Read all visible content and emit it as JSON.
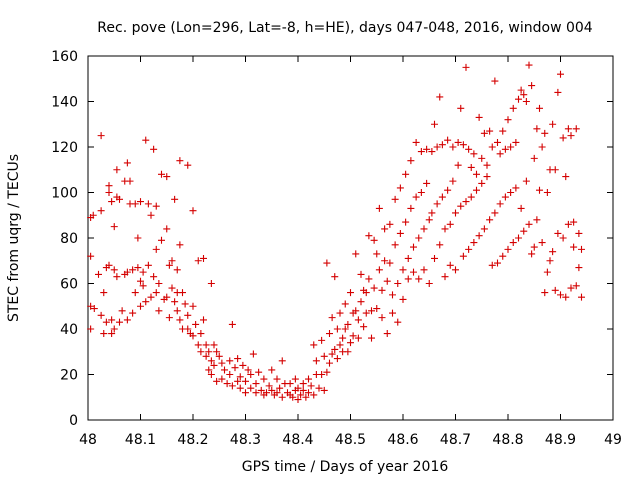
{
  "chart_data": {
    "type": "scatter",
    "title": "Rec. pove (Lon=296, Lat=-8, h=HE), days 047-048, 2016, window 004",
    "xlabel": "GPS time / Days of year 2016",
    "ylabel": "STEC from uqrg / TECUs",
    "xlim": [
      48,
      49
    ],
    "ylim": [
      0,
      160
    ],
    "xticks": [
      "48",
      "48.1",
      "48.2",
      "48.3",
      "48.4",
      "48.5",
      "48.6",
      "48.7",
      "48.8",
      "48.9",
      "49"
    ],
    "yticks": [
      "0",
      "20",
      "40",
      "60",
      "80",
      "100",
      "120",
      "140",
      "160"
    ],
    "grid": false,
    "marker": "+",
    "series_color": "#d40000",
    "points": [
      [
        48.005,
        72
      ],
      [
        48.005,
        89
      ],
      [
        48.005,
        50
      ],
      [
        48.005,
        40
      ],
      [
        48.01,
        90
      ],
      [
        48.012,
        49
      ],
      [
        48.02,
        64
      ],
      [
        48.025,
        92
      ],
      [
        48.025,
        125
      ],
      [
        48.025,
        46
      ],
      [
        48.03,
        38
      ],
      [
        48.03,
        56
      ],
      [
        48.035,
        67
      ],
      [
        48.035,
        43
      ],
      [
        48.04,
        68
      ],
      [
        48.04,
        100
      ],
      [
        48.04,
        103
      ],
      [
        48.045,
        38
      ],
      [
        48.045,
        44
      ],
      [
        48.045,
        96
      ],
      [
        48.05,
        66
      ],
      [
        48.05,
        85
      ],
      [
        48.05,
        40
      ],
      [
        48.055,
        110
      ],
      [
        48.055,
        63
      ],
      [
        48.055,
        98
      ],
      [
        48.06,
        43
      ],
      [
        48.06,
        97
      ],
      [
        48.065,
        48
      ],
      [
        48.07,
        105
      ],
      [
        48.07,
        64
      ],
      [
        48.075,
        65
      ],
      [
        48.075,
        113
      ],
      [
        48.075,
        44
      ],
      [
        48.08,
        105
      ],
      [
        48.08,
        95
      ],
      [
        48.085,
        66
      ],
      [
        48.085,
        47
      ],
      [
        48.09,
        56
      ],
      [
        48.09,
        95
      ],
      [
        48.095,
        80
      ],
      [
        48.095,
        67
      ],
      [
        48.1,
        50
      ],
      [
        48.1,
        61
      ],
      [
        48.1,
        96
      ],
      [
        48.105,
        65
      ],
      [
        48.105,
        59
      ],
      [
        48.11,
        52
      ],
      [
        48.11,
        123
      ],
      [
        48.115,
        95
      ],
      [
        48.115,
        68
      ],
      [
        48.12,
        90
      ],
      [
        48.12,
        54
      ],
      [
        48.125,
        119
      ],
      [
        48.125,
        63
      ],
      [
        48.13,
        75
      ],
      [
        48.13,
        56
      ],
      [
        48.13,
        94
      ],
      [
        48.135,
        48
      ],
      [
        48.135,
        60
      ],
      [
        48.14,
        108
      ],
      [
        48.14,
        79
      ],
      [
        48.145,
        53
      ],
      [
        48.15,
        107
      ],
      [
        48.15,
        54
      ],
      [
        48.15,
        84
      ],
      [
        48.155,
        68
      ],
      [
        48.155,
        45
      ],
      [
        48.16,
        70
      ],
      [
        48.16,
        58
      ],
      [
        48.165,
        52
      ],
      [
        48.165,
        97
      ],
      [
        48.17,
        56
      ],
      [
        48.17,
        48
      ],
      [
        48.17,
        66
      ],
      [
        48.175,
        114
      ],
      [
        48.175,
        77
      ],
      [
        48.175,
        44
      ],
      [
        48.18,
        56
      ],
      [
        48.18,
        40
      ],
      [
        48.185,
        51
      ],
      [
        48.19,
        112
      ],
      [
        48.19,
        40
      ],
      [
        48.19,
        46
      ],
      [
        48.195,
        38
      ],
      [
        48.2,
        92
      ],
      [
        48.2,
        50
      ],
      [
        48.2,
        37
      ],
      [
        48.205,
        42
      ],
      [
        48.21,
        33
      ],
      [
        48.21,
        70
      ],
      [
        48.215,
        30
      ],
      [
        48.215,
        38
      ],
      [
        48.22,
        71
      ],
      [
        48.22,
        44
      ],
      [
        48.225,
        28
      ],
      [
        48.225,
        33
      ],
      [
        48.23,
        22
      ],
      [
        48.23,
        30
      ],
      [
        48.235,
        20
      ],
      [
        48.235,
        60
      ],
      [
        48.235,
        26
      ],
      [
        48.24,
        33
      ],
      [
        48.24,
        24
      ],
      [
        48.245,
        17
      ],
      [
        48.245,
        30
      ],
      [
        48.25,
        28
      ],
      [
        48.255,
        18
      ],
      [
        48.255,
        25
      ],
      [
        48.26,
        22
      ],
      [
        48.265,
        16
      ],
      [
        48.27,
        20
      ],
      [
        48.27,
        26
      ],
      [
        48.275,
        42
      ],
      [
        48.275,
        15
      ],
      [
        48.28,
        23
      ],
      [
        48.285,
        17
      ],
      [
        48.285,
        27
      ],
      [
        48.29,
        14
      ],
      [
        48.29,
        19
      ],
      [
        48.295,
        24
      ],
      [
        48.3,
        17
      ],
      [
        48.3,
        12
      ],
      [
        48.305,
        22
      ],
      [
        48.31,
        14
      ],
      [
        48.31,
        20
      ],
      [
        48.315,
        29
      ],
      [
        48.32,
        12
      ],
      [
        48.32,
        16
      ],
      [
        48.325,
        21
      ],
      [
        48.33,
        13
      ],
      [
        48.335,
        11
      ],
      [
        48.335,
        18
      ],
      [
        48.34,
        12
      ],
      [
        48.345,
        15
      ],
      [
        48.35,
        22
      ],
      [
        48.35,
        13
      ],
      [
        48.355,
        11
      ],
      [
        48.36,
        18
      ],
      [
        48.36,
        12
      ],
      [
        48.365,
        14
      ],
      [
        48.37,
        26
      ],
      [
        48.37,
        10
      ],
      [
        48.375,
        16
      ],
      [
        48.38,
        12
      ],
      [
        48.385,
        11
      ],
      [
        48.385,
        16
      ],
      [
        48.39,
        10
      ],
      [
        48.395,
        13
      ],
      [
        48.395,
        18
      ],
      [
        48.4,
        9
      ],
      [
        48.4,
        14
      ],
      [
        48.405,
        11
      ],
      [
        48.41,
        16
      ],
      [
        48.41,
        13
      ],
      [
        48.415,
        10
      ],
      [
        48.42,
        12
      ],
      [
        48.42,
        18
      ],
      [
        48.425,
        15
      ],
      [
        48.43,
        33
      ],
      [
        48.43,
        11
      ],
      [
        48.435,
        20
      ],
      [
        48.435,
        26
      ],
      [
        48.44,
        14
      ],
      [
        48.445,
        20
      ],
      [
        48.445,
        35
      ],
      [
        48.45,
        13
      ],
      [
        48.45,
        28
      ],
      [
        48.455,
        69
      ],
      [
        48.455,
        21
      ],
      [
        48.46,
        38
      ],
      [
        48.46,
        25
      ],
      [
        48.465,
        45
      ],
      [
        48.465,
        29
      ],
      [
        48.47,
        31
      ],
      [
        48.47,
        63
      ],
      [
        48.475,
        40
      ],
      [
        48.475,
        27
      ],
      [
        48.48,
        47
      ],
      [
        48.48,
        33
      ],
      [
        48.485,
        36
      ],
      [
        48.485,
        30
      ],
      [
        48.49,
        51
      ],
      [
        48.49,
        40
      ],
      [
        48.495,
        42
      ],
      [
        48.495,
        30
      ],
      [
        48.5,
        56
      ],
      [
        48.5,
        34
      ],
      [
        48.505,
        47
      ],
      [
        48.505,
        37
      ],
      [
        48.51,
        73
      ],
      [
        48.51,
        48
      ],
      [
        48.515,
        44
      ],
      [
        48.515,
        36
      ],
      [
        48.52,
        64
      ],
      [
        48.52,
        52
      ],
      [
        48.525,
        41
      ],
      [
        48.525,
        57
      ],
      [
        48.53,
        56
      ],
      [
        48.53,
        47
      ],
      [
        48.535,
        81
      ],
      [
        48.535,
        62
      ],
      [
        48.54,
        48
      ],
      [
        48.54,
        36
      ],
      [
        48.545,
        79
      ],
      [
        48.545,
        58
      ],
      [
        48.55,
        73
      ],
      [
        48.55,
        49
      ],
      [
        48.555,
        93
      ],
      [
        48.555,
        66
      ],
      [
        48.56,
        45
      ],
      [
        48.56,
        57
      ],
      [
        48.565,
        84
      ],
      [
        48.565,
        70
      ],
      [
        48.57,
        61
      ],
      [
        48.57,
        38
      ],
      [
        48.575,
        86
      ],
      [
        48.575,
        69
      ],
      [
        48.58,
        55
      ],
      [
        48.58,
        47
      ],
      [
        48.585,
        97
      ],
      [
        48.585,
        77
      ],
      [
        48.59,
        60
      ],
      [
        48.59,
        43
      ],
      [
        48.595,
        102
      ],
      [
        48.595,
        82
      ],
      [
        48.6,
        66
      ],
      [
        48.6,
        53
      ],
      [
        48.605,
        108
      ],
      [
        48.605,
        87
      ],
      [
        48.61,
        71
      ],
      [
        48.61,
        62
      ],
      [
        48.615,
        114
      ],
      [
        48.615,
        93
      ],
      [
        48.62,
        76
      ],
      [
        48.62,
        65
      ],
      [
        48.625,
        122
      ],
      [
        48.625,
        98
      ],
      [
        48.63,
        80
      ],
      [
        48.63,
        62
      ],
      [
        48.635,
        118
      ],
      [
        48.635,
        100
      ],
      [
        48.64,
        84
      ],
      [
        48.64,
        66
      ],
      [
        48.645,
        119
      ],
      [
        48.645,
        104
      ],
      [
        48.65,
        88
      ],
      [
        48.65,
        60
      ],
      [
        48.655,
        118
      ],
      [
        48.655,
        91
      ],
      [
        48.66,
        130
      ],
      [
        48.66,
        71
      ],
      [
        48.665,
        120
      ],
      [
        48.665,
        95
      ],
      [
        48.67,
        142
      ],
      [
        48.67,
        77
      ],
      [
        48.675,
        121
      ],
      [
        48.675,
        98
      ],
      [
        48.68,
        84
      ],
      [
        48.68,
        63
      ],
      [
        48.685,
        123
      ],
      [
        48.685,
        101
      ],
      [
        48.69,
        86
      ],
      [
        48.69,
        68
      ],
      [
        48.695,
        120
      ],
      [
        48.695,
        105
      ],
      [
        48.7,
        91
      ],
      [
        48.7,
        66
      ],
      [
        48.705,
        122
      ],
      [
        48.705,
        112
      ],
      [
        48.71,
        137
      ],
      [
        48.71,
        94
      ],
      [
        48.715,
        121
      ],
      [
        48.715,
        72
      ],
      [
        48.72,
        155
      ],
      [
        48.72,
        96
      ],
      [
        48.725,
        119
      ],
      [
        48.725,
        75
      ],
      [
        48.73,
        111
      ],
      [
        48.73,
        98
      ],
      [
        48.735,
        117
      ],
      [
        48.735,
        78
      ],
      [
        48.74,
        108
      ],
      [
        48.74,
        101
      ],
      [
        48.745,
        133
      ],
      [
        48.745,
        81
      ],
      [
        48.75,
        115
      ],
      [
        48.75,
        104
      ],
      [
        48.755,
        126
      ],
      [
        48.755,
        84
      ],
      [
        48.76,
        112
      ],
      [
        48.76,
        107
      ],
      [
        48.765,
        127
      ],
      [
        48.765,
        88
      ],
      [
        48.77,
        120
      ],
      [
        48.77,
        68
      ],
      [
        48.775,
        149
      ],
      [
        48.775,
        91
      ],
      [
        48.78,
        122
      ],
      [
        48.78,
        69
      ],
      [
        48.785,
        117
      ],
      [
        48.785,
        95
      ],
      [
        48.79,
        127
      ],
      [
        48.79,
        72
      ],
      [
        48.795,
        119
      ],
      [
        48.795,
        98
      ],
      [
        48.8,
        132
      ],
      [
        48.8,
        75
      ],
      [
        48.805,
        120
      ],
      [
        48.805,
        100
      ],
      [
        48.81,
        137
      ],
      [
        48.81,
        78
      ],
      [
        48.815,
        122
      ],
      [
        48.815,
        102
      ],
      [
        48.82,
        141
      ],
      [
        48.82,
        80
      ],
      [
        48.825,
        145
      ],
      [
        48.825,
        93
      ],
      [
        48.83,
        143
      ],
      [
        48.83,
        83
      ],
      [
        48.835,
        140
      ],
      [
        48.835,
        105
      ],
      [
        48.84,
        156
      ],
      [
        48.84,
        86
      ],
      [
        48.845,
        147
      ],
      [
        48.845,
        73
      ],
      [
        48.85,
        115
      ],
      [
        48.85,
        76
      ],
      [
        48.855,
        128
      ],
      [
        48.855,
        88
      ],
      [
        48.86,
        137
      ],
      [
        48.86,
        101
      ],
      [
        48.865,
        120
      ],
      [
        48.865,
        78
      ],
      [
        48.87,
        126
      ],
      [
        48.87,
        56
      ],
      [
        48.875,
        100
      ],
      [
        48.875,
        65
      ],
      [
        48.88,
        110
      ],
      [
        48.88,
        70
      ],
      [
        48.885,
        130
      ],
      [
        48.885,
        74
      ],
      [
        48.89,
        110
      ],
      [
        48.89,
        57
      ],
      [
        48.895,
        144
      ],
      [
        48.895,
        82
      ],
      [
        48.9,
        152
      ],
      [
        48.9,
        55
      ],
      [
        48.905,
        124
      ],
      [
        48.905,
        80
      ],
      [
        48.91,
        107
      ],
      [
        48.91,
        54
      ],
      [
        48.915,
        128
      ],
      [
        48.915,
        86
      ],
      [
        48.92,
        125
      ],
      [
        48.92,
        58
      ],
      [
        48.925,
        87
      ],
      [
        48.925,
        76
      ],
      [
        48.93,
        128
      ],
      [
        48.93,
        59
      ],
      [
        48.935,
        82
      ],
      [
        48.935,
        67
      ],
      [
        48.94,
        75
      ],
      [
        48.94,
        54
      ]
    ]
  }
}
